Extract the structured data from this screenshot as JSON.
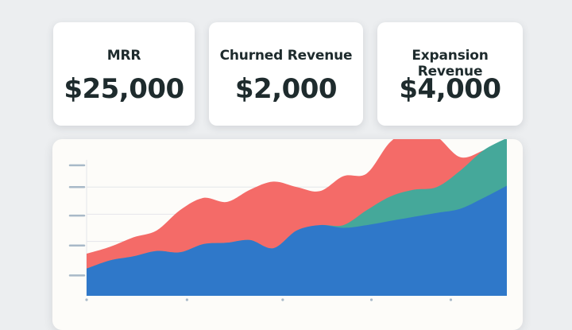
{
  "kpis": {
    "mrr": {
      "label": "MRR",
      "value": "$25,000"
    },
    "churned": {
      "label": "Churned Revenue",
      "value": "$2,000"
    },
    "expansion": {
      "label": "Expansion Revenue",
      "value": "$4,000"
    }
  },
  "chart_data": {
    "type": "area",
    "title": "",
    "xlabel": "",
    "ylabel": "",
    "grid": true,
    "legend": "none",
    "x": [
      0,
      1,
      2,
      3,
      4,
      5,
      6,
      7,
      8,
      9,
      10,
      11,
      12,
      13,
      14,
      15,
      16,
      17,
      18
    ],
    "ylim": [
      0,
      100
    ],
    "series": [
      {
        "color": "#2f78c9",
        "values": [
          20,
          26,
          29,
          33,
          32,
          38,
          39,
          41,
          35,
          48,
          52,
          50,
          52,
          55,
          58,
          61,
          64,
          72,
          81
        ]
      },
      {
        "color": "#45a89a",
        "values": [
          0,
          0,
          0,
          0,
          0,
          0,
          0,
          0,
          0,
          0,
          0,
          2,
          11,
          18,
          20,
          19,
          28,
          35,
          35
        ]
      },
      {
        "color": "#f46b68",
        "values": [
          11,
          10,
          14,
          15,
          31,
          34,
          30,
          37,
          49,
          32,
          25,
          36,
          27,
          40,
          45,
          37,
          10,
          0,
          0
        ]
      }
    ],
    "colors": {
      "grid": "#e4e6ea",
      "tick": "#a8b9c8",
      "axis": "#8f9fb0"
    }
  }
}
